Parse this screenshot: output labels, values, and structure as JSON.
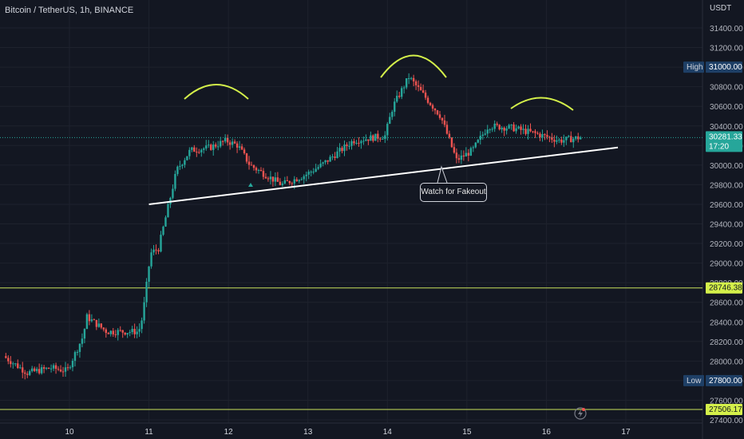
{
  "header": {
    "title": "Bitcoin / TetherUS, 1h, BINANCE"
  },
  "colors": {
    "background": "#131722",
    "up": "#26a69a",
    "down": "#ef5350",
    "trendline": "#ffffff",
    "arcs": "#d4f04a",
    "level_line": "#c8e05a",
    "high_badge": "#1e3f66",
    "low_badge": "#1e3f66",
    "price_badge": "#26a69a",
    "level_badge": "#d4f04a"
  },
  "annotation": {
    "callout": "Watch for Fakeout"
  },
  "chart_data": {
    "type": "candlestick",
    "title": "Bitcoin / TetherUS, 1h, BINANCE",
    "yaxis": {
      "unit": "USDT",
      "ylim": [
        27400,
        31800
      ],
      "ticks": [
        "31400.00",
        "31200.00",
        "31000.00",
        "30800.00",
        "30600.00",
        "30400.00",
        "30200.00",
        "30000.00",
        "29800.00",
        "29600.00",
        "29400.00",
        "29200.00",
        "29000.00",
        "28800.00",
        "28600.00",
        "28400.00",
        "28200.00",
        "28000.00",
        "27800.00",
        "27600.00",
        "27400.00"
      ]
    },
    "xaxis": {
      "ticks": [
        "10",
        "11",
        "12",
        "13",
        "14",
        "15",
        "16",
        "17"
      ]
    },
    "grid": true,
    "labels": {
      "high_label": "High",
      "high_value": "31000.00",
      "low_label": "Low",
      "low_value": "27800.00",
      "current_price": "30281.33",
      "countdown": "17:20",
      "level_upper": "28746.38",
      "level_lower": "27506.17"
    },
    "horizontal_levels": [
      28746.38,
      27506.17
    ],
    "trendline": {
      "from": {
        "day": 11.0,
        "price": 29600
      },
      "to": {
        "day": 16.9,
        "price": 30180
      }
    },
    "candles_summary": {
      "start_day": 9.2,
      "end_day": 16.45,
      "open": 28050,
      "low": 27800,
      "high": 31000,
      "close": 30281.33
    },
    "pattern": "head and shoulders"
  }
}
